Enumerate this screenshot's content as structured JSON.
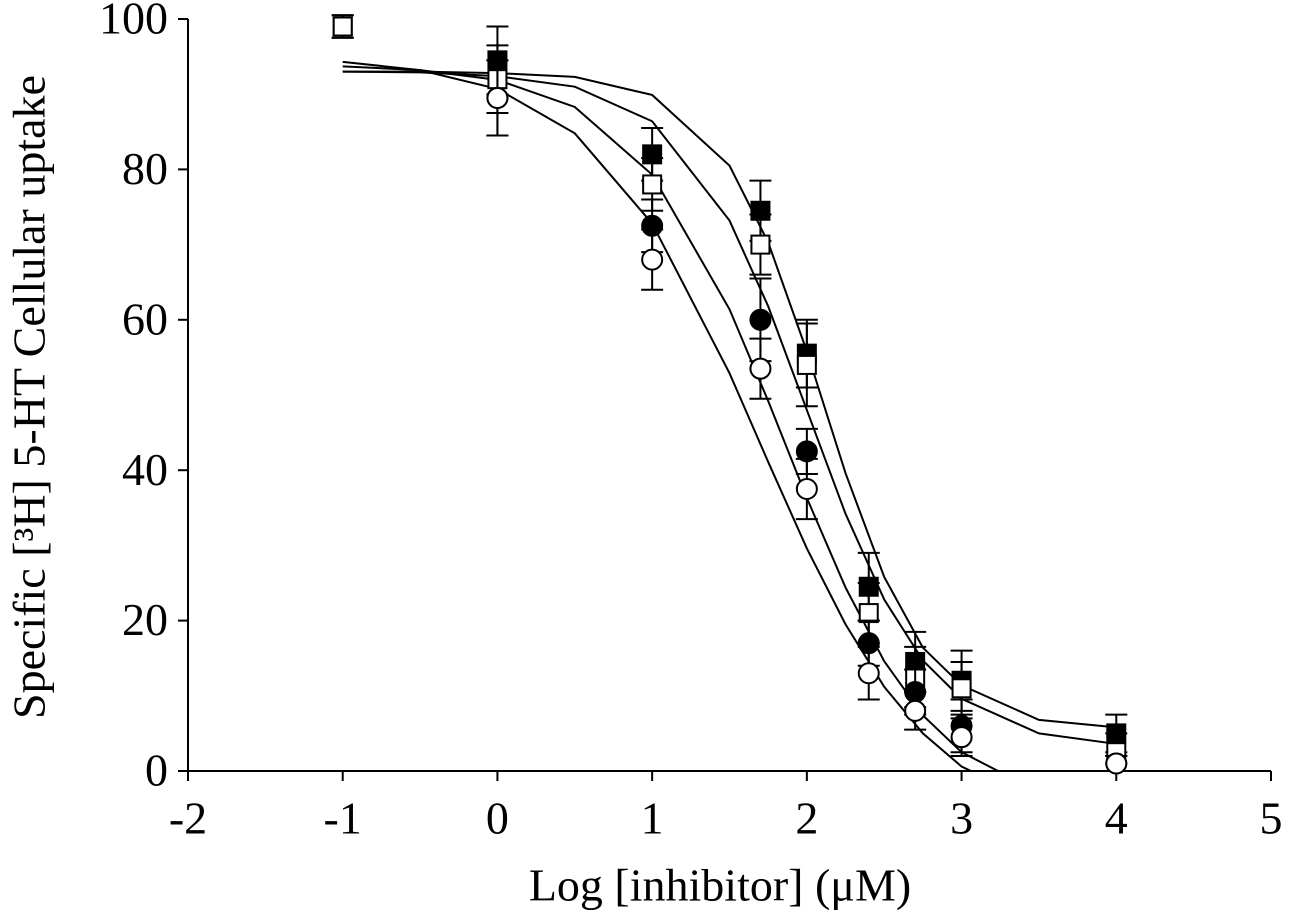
{
  "chart_data": {
    "type": "scatter",
    "x_label": "Log [inhibitor] (μM)",
    "y_label": "Specific [³H] 5-HT Cellular uptake",
    "xlim": [
      -2,
      5
    ],
    "xticks": [
      -2,
      -1,
      0,
      1,
      2,
      3,
      4,
      5
    ],
    "ylim": [
      0,
      100
    ],
    "yticks": [
      0,
      20,
      40,
      60,
      80,
      100
    ],
    "series": [
      {
        "color": "#000000",
        "marker": "square",
        "filled": true,
        "x": [
          -1,
          0,
          1,
          1.7,
          2,
          2.4,
          2.7,
          3,
          4
        ],
        "values": [
          99,
          94.5,
          82,
          74.5,
          55.5,
          24.5,
          14.5,
          12,
          5
        ],
        "errors": [
          1.5,
          4.5,
          3.5,
          4,
          4.5,
          4.5,
          4,
          4,
          2.5
        ],
        "curve": {
          "x": [
            -1,
            -0.5,
            0,
            0.5,
            1,
            1.5,
            1.75,
            2,
            2.25,
            2.5,
            2.75,
            3,
            3.5,
            4
          ],
          "values": [
            93,
            93,
            92.8,
            92.3,
            89.9,
            80.5,
            70.3,
            55.8,
            39.6,
            25.8,
            16.4,
            11.4,
            6.8,
            5.8
          ]
        }
      },
      {
        "color": "#000000",
        "marker": "square",
        "filled": false,
        "x": [
          -1,
          0,
          1,
          1.7,
          2,
          2.4,
          2.7,
          3,
          4
        ],
        "values": [
          99,
          92,
          78,
          70,
          54,
          21,
          12.5,
          11,
          2.5
        ],
        "errors": [
          1.5,
          4.5,
          3.5,
          4,
          5.5,
          4,
          4,
          3.5,
          2.5
        ],
        "curve": {
          "x": [
            -1,
            -0.5,
            0,
            0.5,
            1,
            1.5,
            1.75,
            2,
            2.25,
            2.5,
            2.75,
            3,
            3.5,
            4
          ],
          "values": [
            93,
            92.9,
            92.4,
            91,
            86.4,
            73.2,
            61.8,
            48,
            34.2,
            22.8,
            14.7,
            9.6,
            5,
            3.6
          ]
        }
      },
      {
        "color": "#000000",
        "marker": "circle",
        "filled": true,
        "x": [
          0,
          1,
          1.7,
          2,
          2.4,
          2.7,
          3,
          4
        ],
        "values": [
          89.5,
          72.5,
          60,
          42.5,
          17,
          10.5,
          6,
          1
        ],
        "errors": [
          5,
          3.5,
          5.5,
          3,
          3,
          3,
          3.5,
          1
        ],
        "curve": {
          "x": [
            -1,
            -0.5,
            0,
            0.5,
            1,
            1.5,
            1.75,
            2,
            2.25,
            2.5,
            2.75,
            3,
            3.5,
            4
          ],
          "values": [
            93.7,
            93.2,
            91.9,
            88.3,
            79.3,
            61.4,
            49.2,
            36.3,
            24.4,
            14.6,
            7.4,
            2.5,
            -2.8,
            -4.9
          ]
        }
      },
      {
        "color": "#000000",
        "marker": "circle",
        "filled": false,
        "x": [
          0,
          1,
          1.7,
          2,
          2.4,
          2.7,
          3,
          4
        ],
        "values": [
          89.5,
          68,
          53.5,
          37.5,
          13,
          8,
          4.5,
          1
        ],
        "errors": [
          5,
          4,
          4,
          4,
          3.5,
          2.5,
          2.5,
          1
        ],
        "curve": {
          "x": [
            -1,
            -0.5,
            0,
            0.5,
            1,
            1.5,
            1.75,
            2,
            2.25,
            2.5,
            2.75,
            3,
            3.5,
            4
          ],
          "values": [
            94.3,
            93.2,
            90.7,
            84.8,
            72.8,
            52.9,
            41.1,
            29.6,
            19.5,
            11.2,
            5,
            0.6,
            -4.4,
            -6.5
          ]
        }
      }
    ]
  }
}
